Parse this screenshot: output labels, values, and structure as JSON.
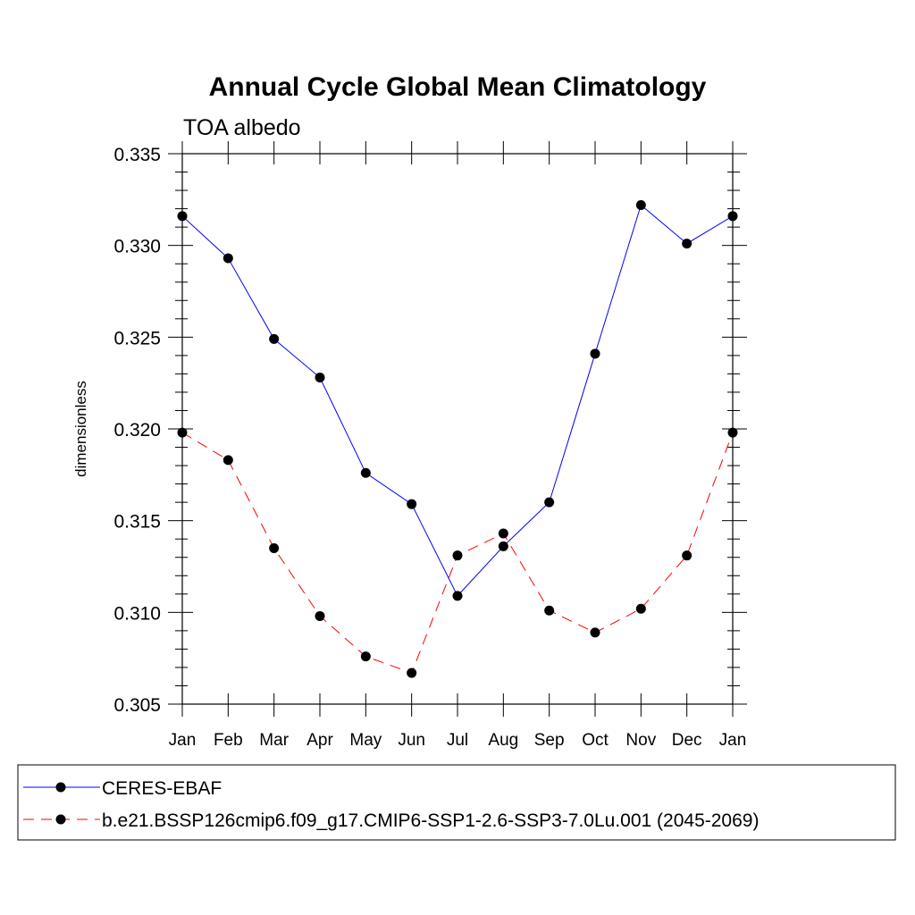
{
  "chart_data": {
    "type": "line",
    "title": "Annual Cycle Global Mean Climatology",
    "subtitle": "TOA albedo",
    "xlabel": "",
    "ylabel": "dimensionless",
    "categories": [
      "Jan",
      "Feb",
      "Mar",
      "Apr",
      "May",
      "Jun",
      "Jul",
      "Aug",
      "Sep",
      "Oct",
      "Nov",
      "Dec",
      "Jan"
    ],
    "ylim": [
      0.305,
      0.335
    ],
    "yticks": [
      "0.305",
      "0.310",
      "0.315",
      "0.320",
      "0.325",
      "0.330",
      "0.335"
    ],
    "grid": false,
    "legend_position": "bottom",
    "series": [
      {
        "name": "CERES-EBAF",
        "color": "#0000ff",
        "dash": "solid",
        "marker": "filled-circle",
        "values": [
          0.3316,
          0.3293,
          0.3249,
          0.3228,
          0.3176,
          0.3159,
          0.3109,
          0.3136,
          0.316,
          0.3241,
          0.3322,
          0.3301,
          0.3316
        ]
      },
      {
        "name": "b.e21.BSSP126cmip6.f09_g17.CMIP6-SSP1-2.6-SSP3-7.0Lu.001 (2045-2069)",
        "color": "#ff0000",
        "dash": "dashed",
        "marker": "filled-circle",
        "values": [
          0.3198,
          0.3183,
          0.3135,
          0.3098,
          0.3076,
          0.3067,
          0.3131,
          0.3143,
          0.3101,
          0.3089,
          0.3102,
          0.3131,
          0.3198
        ]
      }
    ]
  }
}
